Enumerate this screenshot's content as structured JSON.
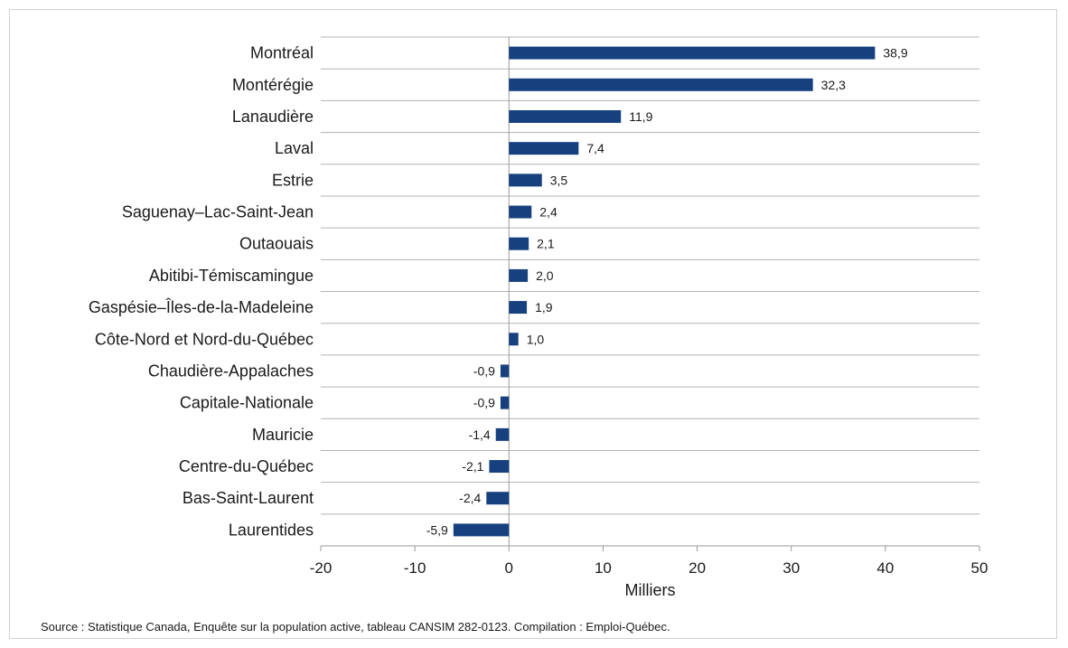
{
  "chart_data": {
    "type": "bar",
    "orientation": "horizontal",
    "categories": [
      "Montréal",
      "Montérégie",
      "Lanaudière",
      "Laval",
      "Estrie",
      "Saguenay–Lac-Saint-Jean",
      "Outaouais",
      "Abitibi-Témiscamingue",
      "Gaspésie–Îles-de-la-Madeleine",
      "Côte-Nord et Nord-du-Québec",
      "Chaudière-Appalaches",
      "Capitale-Nationale",
      "Mauricie",
      "Centre-du-Québec",
      "Bas-Saint-Laurent",
      "Laurentides"
    ],
    "values": [
      38.9,
      32.3,
      11.9,
      7.4,
      3.5,
      2.4,
      2.1,
      2.0,
      1.9,
      1.0,
      -0.9,
      -0.9,
      -1.4,
      -2.1,
      -2.4,
      -5.9
    ],
    "data_labels": [
      "38,9",
      "32,3",
      "11,9",
      "7,4",
      "3,5",
      "2,4",
      "2,1",
      "2,0",
      "1,9",
      "1,0",
      "-0,9",
      "-0,9",
      "-1,4",
      "-2,1",
      "-2,4",
      "-5,9"
    ],
    "xlim": [
      -20,
      50
    ],
    "xticks": [
      -20,
      -10,
      0,
      10,
      20,
      30,
      40,
      50
    ],
    "xtick_labels": [
      "-20",
      "-10",
      "0",
      "10",
      "20",
      "30",
      "40",
      "50"
    ],
    "xlabel": "Milliers",
    "title": "",
    "grid": "horizontal",
    "bar_color": "#17407f",
    "legend": "none"
  },
  "source": "Source : Statistique Canada, Enquête sur la population active, tableau CANSIM 282-0123. Compilation : Emploi-Québec."
}
